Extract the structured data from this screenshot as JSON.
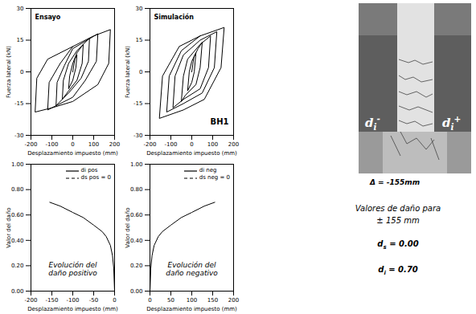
{
  "chart_data": [
    {
      "type": "line",
      "title": "Ensayo",
      "x_label": "Desplazamiento impuesto (mm)",
      "y_label": "Fuerza lateral (kN)",
      "xlim": [
        -200,
        200
      ],
      "xticks": [
        -200,
        -100,
        0,
        100,
        200
      ],
      "ylim": [
        -30,
        30
      ],
      "yticks": [
        -30,
        -15,
        0,
        15,
        30
      ],
      "grid": false,
      "series": [
        {
          "color": "#000000",
          "line_style": "solid",
          "x": [
            0,
            10,
            20,
            15,
            0,
            -20,
            -15,
            0,
            20,
            50,
            45,
            20,
            -20,
            -50,
            -45,
            -20,
            20,
            80,
            75,
            40,
            -20,
            -80,
            -75,
            -40,
            0,
            120,
            113,
            60,
            0,
            -120,
            -113,
            -60,
            0,
            100,
            180,
            172,
            120,
            0,
            -100,
            -180,
            -172,
            -120,
            0
          ],
          "values": [
            0,
            6,
            8,
            2,
            -4,
            -8,
            -2,
            4,
            9,
            13,
            4,
            -4,
            -9,
            -13,
            -4,
            4,
            10,
            16,
            5,
            -3,
            -10,
            -16,
            -5,
            3,
            11,
            18,
            5,
            -4,
            -12,
            -18,
            -5,
            4,
            12,
            17,
            20,
            4,
            -6,
            -14,
            -17,
            -19,
            -3,
            6,
            12
          ]
        }
      ]
    },
    {
      "type": "line",
      "title": "Simulación",
      "annotations": [
        "BH1"
      ],
      "x_label": "Desplazamiento impuesto (mm)",
      "y_label": "Fuerza lateral (kN)",
      "xlim": [
        -200,
        200
      ],
      "xticks": [
        -200,
        -100,
        0,
        100,
        200
      ],
      "ylim": [
        -30,
        30
      ],
      "yticks": [
        -30,
        -15,
        0,
        15,
        30
      ],
      "grid": false,
      "series": [
        {
          "color": "#000000",
          "line_style": "solid",
          "x": [
            0,
            10,
            20,
            12,
            0,
            -20,
            -12,
            0,
            30,
            50,
            40,
            20,
            -30,
            -50,
            -40,
            -20,
            40,
            90,
            80,
            40,
            -40,
            -90,
            -80,
            -40,
            40,
            120,
            108,
            50,
            -40,
            -120,
            -108,
            -50,
            40,
            155,
            140,
            60,
            -40,
            -155,
            -140,
            -60,
            40
          ],
          "values": [
            0,
            7,
            9,
            0,
            -5,
            -9,
            0,
            5,
            11,
            14,
            2,
            -6,
            -11,
            -14,
            -2,
            6,
            13,
            17,
            2,
            -8,
            -13,
            -17,
            -2,
            8,
            15,
            19,
            2,
            -10,
            -15,
            -19,
            -2,
            10,
            17,
            21,
            2,
            -13,
            -18,
            -22,
            -2,
            12,
            17
          ]
        }
      ]
    },
    {
      "type": "line",
      "annotations": [
        "Evolución del\ndaño positivo"
      ],
      "x_label": "Desplazamiento impuesto (mm)",
      "y_label": "Valor del daño",
      "xlim": [
        -200,
        0
      ],
      "xticks": [
        -200,
        -150,
        -100,
        -50,
        0
      ],
      "ylim": [
        0,
        1
      ],
      "yticks": [
        {
          "value": 0,
          "label": "0.00"
        },
        {
          "value": 0.2,
          "label": "0.20"
        },
        {
          "value": 0.4,
          "label": "0.40"
        },
        {
          "value": 0.6,
          "label": "0.60"
        },
        {
          "value": 0.8,
          "label": "0.80"
        },
        {
          "value": 1,
          "label": "1.00"
        }
      ],
      "grid": false,
      "legend": "top-right",
      "series": [
        {
          "name": "di pos",
          "color": "#000000",
          "line_style": "solid",
          "x": [
            -155,
            -130,
            -100,
            -75,
            -50,
            -30,
            -20,
            -10,
            -5,
            -2,
            0
          ],
          "values": [
            0.7,
            0.67,
            0.62,
            0.58,
            0.52,
            0.47,
            0.43,
            0.36,
            0.28,
            0.18,
            0
          ]
        },
        {
          "name": "ds pos = 0",
          "color": "#000000",
          "line_style": "dashed",
          "x": [
            -155,
            0
          ],
          "values": [
            0,
            0
          ]
        }
      ]
    },
    {
      "type": "line",
      "annotations": [
        "Evolución del\ndaño negativo"
      ],
      "x_label": "Desplazamiento impuesto (mm)",
      "y_label": "Valor del daño",
      "xlim": [
        0,
        200
      ],
      "xticks": [
        0,
        50,
        100,
        150,
        200
      ],
      "ylim": [
        0,
        1
      ],
      "yticks": [
        {
          "value": 0,
          "label": "0.00"
        },
        {
          "value": 0.2,
          "label": "0.20"
        },
        {
          "value": 0.4,
          "label": "0.40"
        },
        {
          "value": 0.6,
          "label": "0.60"
        },
        {
          "value": 0.8,
          "label": "0.80"
        },
        {
          "value": 1,
          "label": "1.00"
        }
      ],
      "grid": false,
      "legend": "top-right",
      "series": [
        {
          "name": "di neg",
          "color": "#000000",
          "line_style": "solid",
          "x": [
            0,
            2,
            5,
            10,
            20,
            30,
            50,
            75,
            100,
            130,
            155
          ],
          "values": [
            0,
            0.18,
            0.28,
            0.36,
            0.43,
            0.47,
            0.52,
            0.58,
            0.62,
            0.67,
            0.7
          ]
        },
        {
          "name": "ds neg = 0",
          "color": "#000000",
          "line_style": "dashed",
          "x": [
            0,
            155
          ],
          "values": [
            0,
            0
          ]
        }
      ]
    }
  ],
  "photo": {
    "labels": [
      {
        "text": "d",
        "sub": "i",
        "sup": "-"
      },
      {
        "text": "d",
        "sub": "i",
        "sup": "+"
      }
    ],
    "caption": "Δ = -155mm"
  },
  "damage_values": {
    "title": "Valores de daño para",
    "subtitle": "± 155 mm",
    "items": [
      {
        "text": "d",
        "sub": "s",
        "after": " = 0.00"
      },
      {
        "text": "d",
        "sub": "i",
        "after": " = 0.70"
      }
    ]
  }
}
